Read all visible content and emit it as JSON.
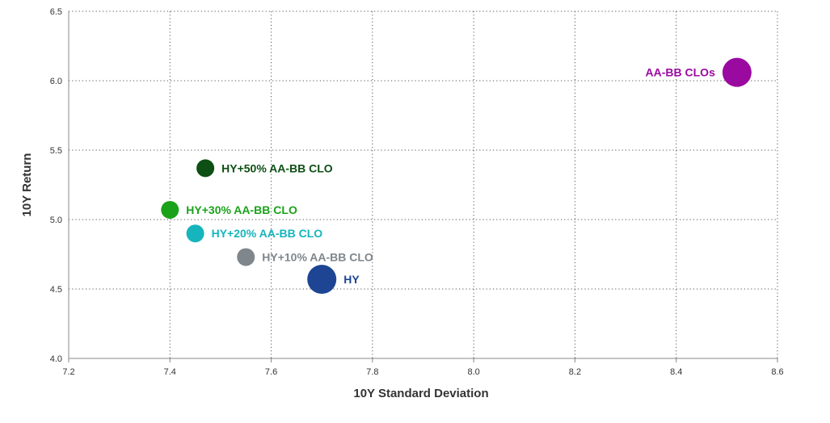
{
  "chart_data": {
    "type": "scatter",
    "title": "",
    "xlabel": "10Y Standard Deviation",
    "ylabel": "10Y Return",
    "xlim": [
      7.2,
      8.6
    ],
    "ylim": [
      4.0,
      6.5
    ],
    "xticks": [
      "7.2",
      "7.4",
      "7.6",
      "7.8",
      "8.0",
      "8.2",
      "8.4",
      "8.6"
    ],
    "yticks": [
      "4.0",
      "4.5",
      "5.0",
      "5.5",
      "6.0",
      "6.5"
    ],
    "grid": true,
    "points": [
      {
        "label": "AA-BB CLOs",
        "x": 8.52,
        "y": 6.06,
        "color": "#9b0aa0",
        "size": "large",
        "label_side": "left"
      },
      {
        "label": "HY+50% AA-BB CLO",
        "x": 7.47,
        "y": 5.37,
        "color": "#0d4f14",
        "size": "small",
        "label_side": "right"
      },
      {
        "label": "HY+30% AA-BB CLO",
        "x": 7.4,
        "y": 5.07,
        "color": "#1aa31a",
        "size": "small",
        "label_side": "right"
      },
      {
        "label": "HY+20% AA-BB CLO",
        "x": 7.45,
        "y": 4.9,
        "color": "#16b5bd",
        "size": "small",
        "label_side": "right"
      },
      {
        "label": "HY+10% AA-BB CLO",
        "x": 7.55,
        "y": 4.73,
        "color": "#7f868c",
        "size": "small",
        "label_side": "right"
      },
      {
        "label": "HY",
        "x": 7.7,
        "y": 4.57,
        "color": "#1d4594",
        "size": "large",
        "label_side": "right"
      }
    ]
  }
}
